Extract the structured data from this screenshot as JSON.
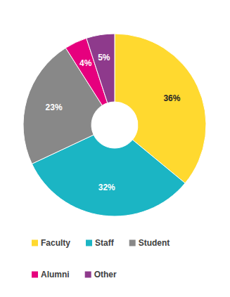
{
  "chart_data": {
    "type": "pie",
    "categories": [
      "Faculty",
      "Staff",
      "Student",
      "Alumni",
      "Other"
    ],
    "values": [
      36,
      32,
      23,
      4,
      5
    ],
    "value_labels": [
      "36%",
      "32%",
      "23%",
      "4%",
      "5%"
    ],
    "colors": [
      "#ffd92f",
      "#1bb5c4",
      "#888888",
      "#e6007e",
      "#8e3a8c"
    ],
    "data_labels": true,
    "legend": "bottom"
  }
}
